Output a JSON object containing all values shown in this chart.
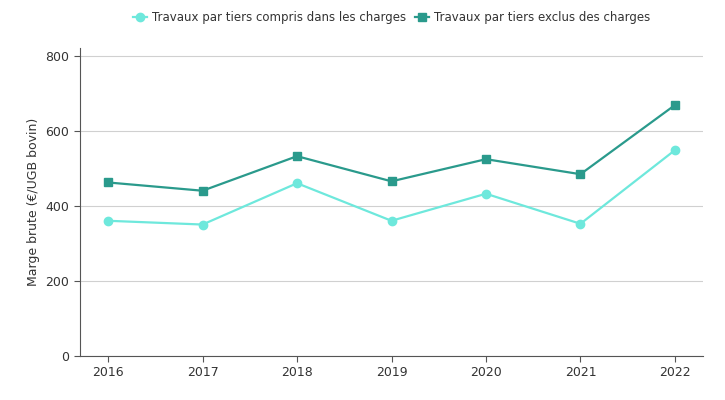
{
  "years": [
    2016,
    2017,
    2018,
    2019,
    2020,
    2021,
    2022
  ],
  "series1_label": "Travaux par tiers compris dans les charges",
  "series1_values": [
    360,
    350,
    460,
    360,
    432,
    352,
    548
  ],
  "series1_color": "#6EE8DC",
  "series1_marker": "o",
  "series2_label": "Travaux par tiers exclus des charges",
  "series2_values": [
    462,
    440,
    532,
    465,
    524,
    484,
    668
  ],
  "series2_color": "#2A9A8C",
  "series2_marker": "s",
  "ylabel": "Marge brute (€/UGB bovin)",
  "ylim": [
    0,
    820
  ],
  "yticks": [
    0,
    200,
    400,
    600,
    800
  ],
  "background_color": "#ffffff",
  "grid_color": "#d0d0d0",
  "linewidth": 1.6,
  "markersize": 6,
  "spine_color": "#555555"
}
